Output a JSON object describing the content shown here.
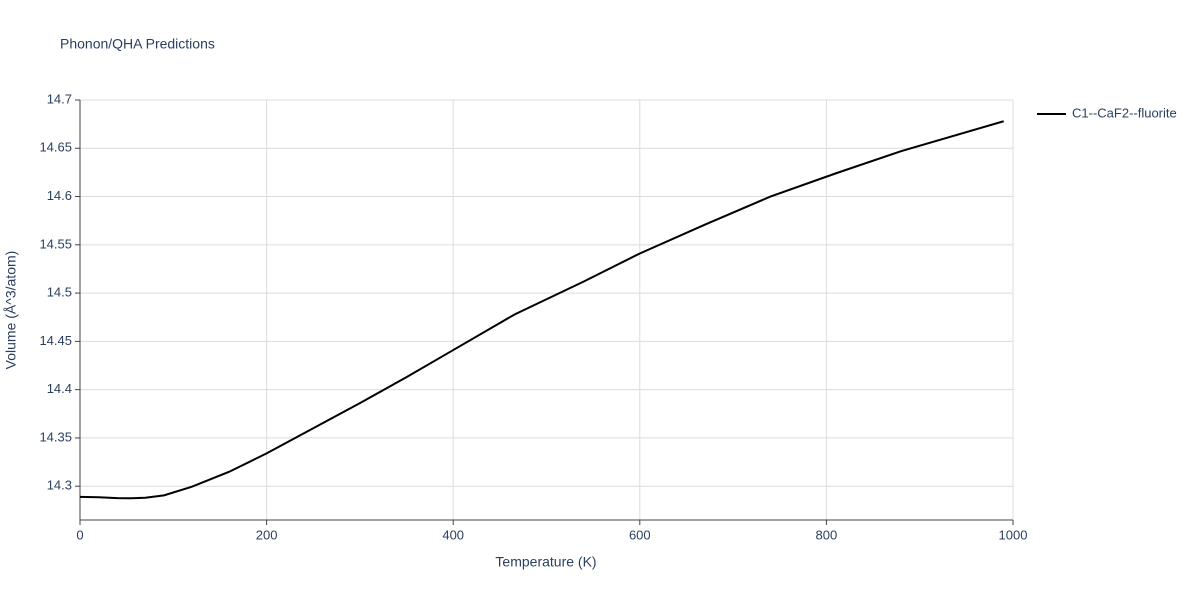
{
  "chart_data": {
    "type": "line",
    "title": "Phonon/QHA Predictions",
    "x_label": "Temperature (K)",
    "y_label": "Volume (Å^3/atom)",
    "x": [
      0,
      20,
      40,
      55,
      70,
      90,
      120,
      160,
      200,
      250,
      300,
      350,
      400,
      466,
      540,
      600,
      670,
      740,
      810,
      880,
      990
    ],
    "series": [
      {
        "name": "C1--CaF2--fluorite",
        "color": "#000000",
        "values": [
          14.289,
          14.2885,
          14.2877,
          14.2875,
          14.288,
          14.2905,
          14.2995,
          14.315,
          14.334,
          14.36,
          14.386,
          14.413,
          14.441,
          14.478,
          14.512,
          14.541,
          14.571,
          14.6,
          14.624,
          14.647,
          14.678
        ]
      }
    ],
    "xlim": [
      0,
      1000
    ],
    "xticks": [
      0,
      200,
      400,
      600,
      800,
      1000
    ],
    "ylim": [
      14.265,
      14.7
    ],
    "yticks": [
      14.3,
      14.35,
      14.4,
      14.45,
      14.5,
      14.55,
      14.6,
      14.65,
      14.7
    ],
    "grid": true,
    "legend": "right"
  }
}
